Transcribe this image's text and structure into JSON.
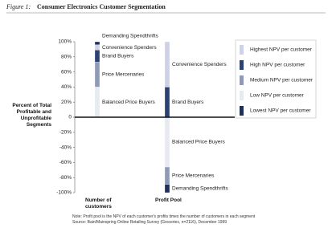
{
  "chart_data": {
    "type": "stacked_bar",
    "figure_label": "Figure 1:",
    "title": "Consumer Electronics Customer Segmentation",
    "ylabel": "Percent of Total Profitable and Unprofitable Segments",
    "categories": [
      "Number of customers",
      "Profit Pool"
    ],
    "series": [
      {
        "name": "Balanced Price Buyers",
        "color": "#e8eaf2",
        "values": [
          40,
          -66
        ]
      },
      {
        "name": "Price Mercenaries",
        "color": "#8f9bb6",
        "values": [
          33,
          -23
        ]
      },
      {
        "name": "Brand Buyers",
        "color": "#2c4270",
        "values": [
          16,
          40
        ]
      },
      {
        "name": "Convenience Spenders",
        "color": "#cfd2e6",
        "values": [
          7,
          60
        ]
      },
      {
        "name": "Demanding Spendthrifts",
        "color": "#1f2f57",
        "values": [
          4,
          -11
        ]
      }
    ],
    "legend": [
      {
        "label": "Highest NPV per customer",
        "color": "#cfd2e6"
      },
      {
        "label": "High NPV per customer",
        "color": "#2c4270"
      },
      {
        "label": "Medium NPV per customer",
        "color": "#8f9bb6"
      },
      {
        "label": "Low NPV per customer",
        "color": "#e8eaf2"
      },
      {
        "label": "Lowest NPV per customer",
        "color": "#1f2f57"
      }
    ],
    "ylim": [
      -100,
      100
    ],
    "yticks": [
      {
        "value": 100,
        "label": "100%"
      },
      {
        "value": 80,
        "label": "80%"
      },
      {
        "value": 60,
        "label": "60%"
      },
      {
        "value": 40,
        "label": "40%"
      },
      {
        "value": 20,
        "label": "20%"
      },
      {
        "value": 0,
        "label": "0"
      },
      {
        "value": -20,
        "label": "-20%"
      },
      {
        "value": -40,
        "label": "-40%"
      },
      {
        "value": -60,
        "label": "-60%"
      },
      {
        "value": -80,
        "label": "-80%"
      },
      {
        "value": -100,
        "label": "-100%"
      }
    ],
    "notes": [
      "Note: Profit pool is the NPV of each customer's profits times the number of customers in each segment",
      "Source: Bain/Mainspring Online Retailing Survey (Groceries, n=2116), December 1999"
    ]
  }
}
